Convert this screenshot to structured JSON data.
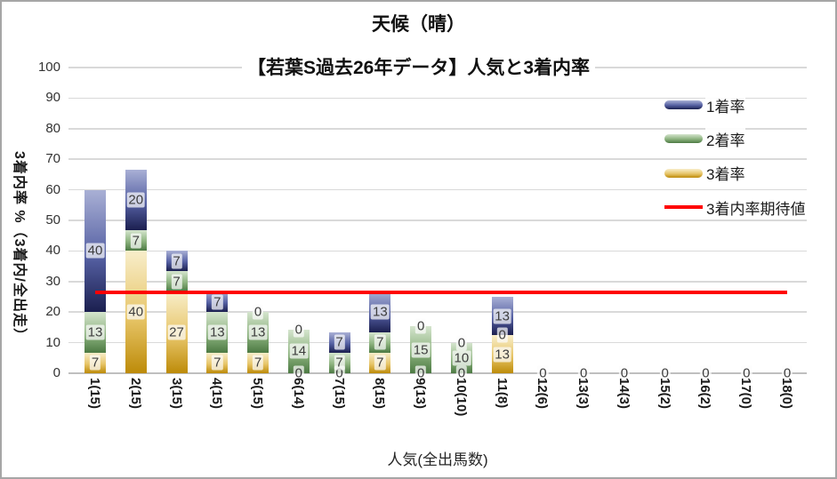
{
  "title": {
    "line1": "天候（晴）",
    "line2": "【若葉S過去26年データ】人気と3着内率"
  },
  "axes": {
    "y_title": "3着内率 %（3着内/全出走）",
    "x_title": "人気(全出馬数)",
    "y_ticks": [
      "100",
      "90",
      "80",
      "70",
      "60",
      "50",
      "40",
      "30",
      "20",
      "10",
      "0"
    ]
  },
  "legend": {
    "items": [
      {
        "label": "1着率",
        "swatch": "first",
        "type": "bar"
      },
      {
        "label": "2着率",
        "swatch": "second",
        "type": "bar"
      },
      {
        "label": "3着率",
        "swatch": "third",
        "type": "bar"
      },
      {
        "label": "3着内率期待値",
        "swatch": "line",
        "type": "line"
      }
    ]
  },
  "colors": {
    "first": {
      "top": "#a9b0d5",
      "mid": "#5560a3",
      "bottom": "#1b1f4f"
    },
    "second": {
      "top": "#d5e5ce",
      "mid": "#8db37f",
      "bottom": "#4c7a43"
    },
    "third": {
      "top": "#f8eecb",
      "mid": "#e7c568",
      "bottom": "#bd8b09"
    },
    "expected_line": "#ff0000",
    "gridline": "#d9d9d9",
    "baseline": "#bfbfbf",
    "label_text": "#3d3d3d"
  },
  "chart_data": {
    "type": "bar",
    "stacked": true,
    "title": "天候（晴）【若葉S過去26年データ】人気と3着内率",
    "xlabel": "人気(全出馬数)",
    "ylabel": "3着内率 %（3着内/全出走）",
    "ylim": [
      0,
      100
    ],
    "y_tick_step": 10,
    "grid": true,
    "legend_position": "right-top",
    "categories": [
      "1(15)",
      "2(15)",
      "3(15)",
      "4(15)",
      "5(15)",
      "6(14)",
      "7(15)",
      "8(15)",
      "9(13)",
      "10(10)",
      "11(8)",
      "12(6)",
      "13(3)",
      "14(3)",
      "15(2)",
      "16(2)",
      "17(0)",
      "18(0)"
    ],
    "series": [
      {
        "name": "3着率",
        "color_key": "third",
        "values": [
          6.7,
          40,
          26.7,
          6.7,
          6.7,
          0,
          0,
          6.7,
          0,
          0,
          12.5,
          0,
          0,
          0,
          0,
          0,
          0,
          0
        ],
        "labels": [
          "7",
          "40",
          "27",
          "7",
          "7",
          "0",
          "0",
          "7",
          "0",
          "0",
          "13",
          "0",
          "0",
          "0",
          "0",
          "0",
          "0",
          "0"
        ]
      },
      {
        "name": "2着率",
        "color_key": "second",
        "values": [
          13.3,
          6.7,
          6.7,
          13.3,
          13.3,
          14.3,
          6.7,
          6.7,
          15.4,
          10,
          0,
          0,
          0,
          0,
          0,
          0,
          0,
          0
        ],
        "labels": [
          "13",
          "7",
          "7",
          "13",
          "13",
          "14",
          "7",
          "7",
          "15",
          "10",
          "0",
          "0",
          "0",
          "0",
          "0",
          "0",
          "0",
          "0"
        ]
      },
      {
        "name": "1着率",
        "color_key": "first",
        "values": [
          40,
          20,
          6.7,
          6.7,
          0,
          0,
          6.7,
          13.3,
          0,
          0,
          12.5,
          0,
          0,
          0,
          0,
          0,
          0,
          0
        ],
        "labels": [
          "40",
          "20",
          "7",
          "7",
          "0",
          "0",
          "7",
          "13",
          "0",
          "0",
          "13",
          "0",
          "0",
          "0",
          "0",
          "0",
          "0",
          "0"
        ]
      }
    ],
    "expected_line": {
      "label": "3着内率期待値",
      "value": 26.5
    }
  }
}
